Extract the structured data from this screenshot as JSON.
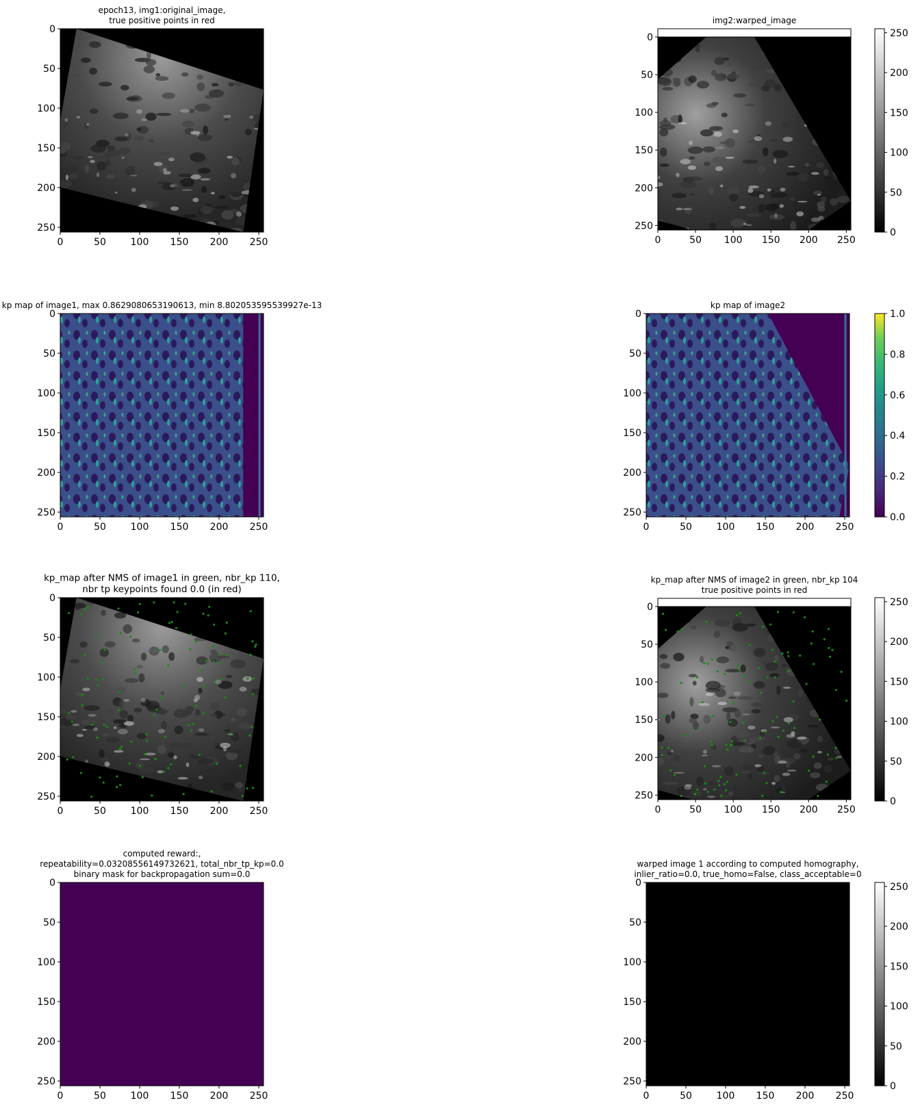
{
  "chart_data": [
    {
      "type": "heatmap",
      "title_lines": [
        "epoch13, img1:original_image,",
        "true positive points in red"
      ],
      "colormap": "gray",
      "xlim": [
        0,
        256
      ],
      "ylim": [
        256,
        0
      ],
      "xticks": [
        0,
        50,
        100,
        150,
        200,
        250
      ],
      "yticks": [
        0,
        50,
        100,
        150,
        200,
        250
      ],
      "colorbar": null
    },
    {
      "type": "heatmap",
      "title_lines": [
        "img2:warped_image"
      ],
      "colormap": "gray",
      "xlim": [
        0,
        256
      ],
      "ylim": [
        256,
        0
      ],
      "xticks": [
        0,
        50,
        100,
        150,
        200,
        250
      ],
      "yticks": [
        0,
        50,
        100,
        150,
        200,
        250
      ],
      "colorbar": {
        "min": 0,
        "max": 255,
        "ticks": [
          0,
          50,
          100,
          150,
          200,
          250
        ],
        "colormap": "gray"
      }
    },
    {
      "type": "heatmap",
      "title_lines": [
        "kp map of image1, max 0.8629080653190613, min 8.802053595539927e-13"
      ],
      "colormap": "viridis",
      "xlim": [
        0,
        256
      ],
      "ylim": [
        256,
        0
      ],
      "xticks": [
        0,
        50,
        100,
        150,
        200,
        250
      ],
      "yticks": [
        0,
        50,
        100,
        150,
        200,
        250
      ],
      "colorbar": null
    },
    {
      "type": "heatmap",
      "title_lines": [
        "kp map of image2"
      ],
      "colormap": "viridis",
      "xlim": [
        0,
        256
      ],
      "ylim": [
        256,
        0
      ],
      "xticks": [
        0,
        50,
        100,
        150,
        200,
        250
      ],
      "yticks": [
        0,
        50,
        100,
        150,
        200,
        250
      ],
      "colorbar": {
        "min": 0.0,
        "max": 1.0,
        "ticks": [
          "0.0",
          "0.2",
          "0.4",
          "0.6",
          "0.8",
          "1.0"
        ],
        "colormap": "viridis"
      }
    },
    {
      "type": "heatmap",
      "title_lines": [
        "kp_map after NMS of image1 in green, nbr_kp 110,",
        "nbr tp keypoints found 0.0 (in red)"
      ],
      "colormap": "gray",
      "xlim": [
        0,
        256
      ],
      "ylim": [
        256,
        0
      ],
      "xticks": [
        0,
        50,
        100,
        150,
        200,
        250
      ],
      "yticks": [
        0,
        50,
        100,
        150,
        200,
        250
      ],
      "colorbar": null,
      "keypoint_color": "#1a8a1a"
    },
    {
      "type": "heatmap",
      "title_lines": [
        "kp_map after NMS of image2 in green, nbr_kp 104",
        "true positive points in red"
      ],
      "colormap": "gray",
      "xlim": [
        0,
        256
      ],
      "ylim": [
        256,
        0
      ],
      "xticks": [
        0,
        50,
        100,
        150,
        200,
        250
      ],
      "yticks": [
        0,
        50,
        100,
        150,
        200,
        250
      ],
      "colorbar": {
        "min": 0,
        "max": 255,
        "ticks": [
          0,
          50,
          100,
          150,
          200,
          250
        ],
        "colormap": "gray"
      },
      "keypoint_color": "#1a8a1a"
    },
    {
      "type": "heatmap",
      "title_lines": [
        "computed reward:,",
        "repeatability=0.03208556149732621, total_nbr_tp_kp=0.0",
        "binary mask for backpropagation sum=0.0"
      ],
      "colormap": "viridis",
      "fill_color": "#440154",
      "xlim": [
        0,
        256
      ],
      "ylim": [
        256,
        0
      ],
      "xticks": [
        0,
        50,
        100,
        150,
        200,
        250
      ],
      "yticks": [
        0,
        50,
        100,
        150,
        200,
        250
      ],
      "colorbar": null
    },
    {
      "type": "heatmap",
      "title_lines": [
        "warped image 1 according to computed homography,",
        "inlier_ratio=0.0, true_homo=False, class_acceptable=0"
      ],
      "colormap": "gray",
      "fill_color": "#000000",
      "xlim": [
        0,
        256
      ],
      "ylim": [
        256,
        0
      ],
      "xticks": [
        0,
        50,
        100,
        150,
        200,
        250
      ],
      "yticks": [
        0,
        50,
        100,
        150,
        200,
        250
      ],
      "colorbar": {
        "min": 0,
        "max": 255,
        "ticks": [
          0,
          50,
          100,
          150,
          200,
          250
        ],
        "colormap": "gray"
      }
    }
  ]
}
